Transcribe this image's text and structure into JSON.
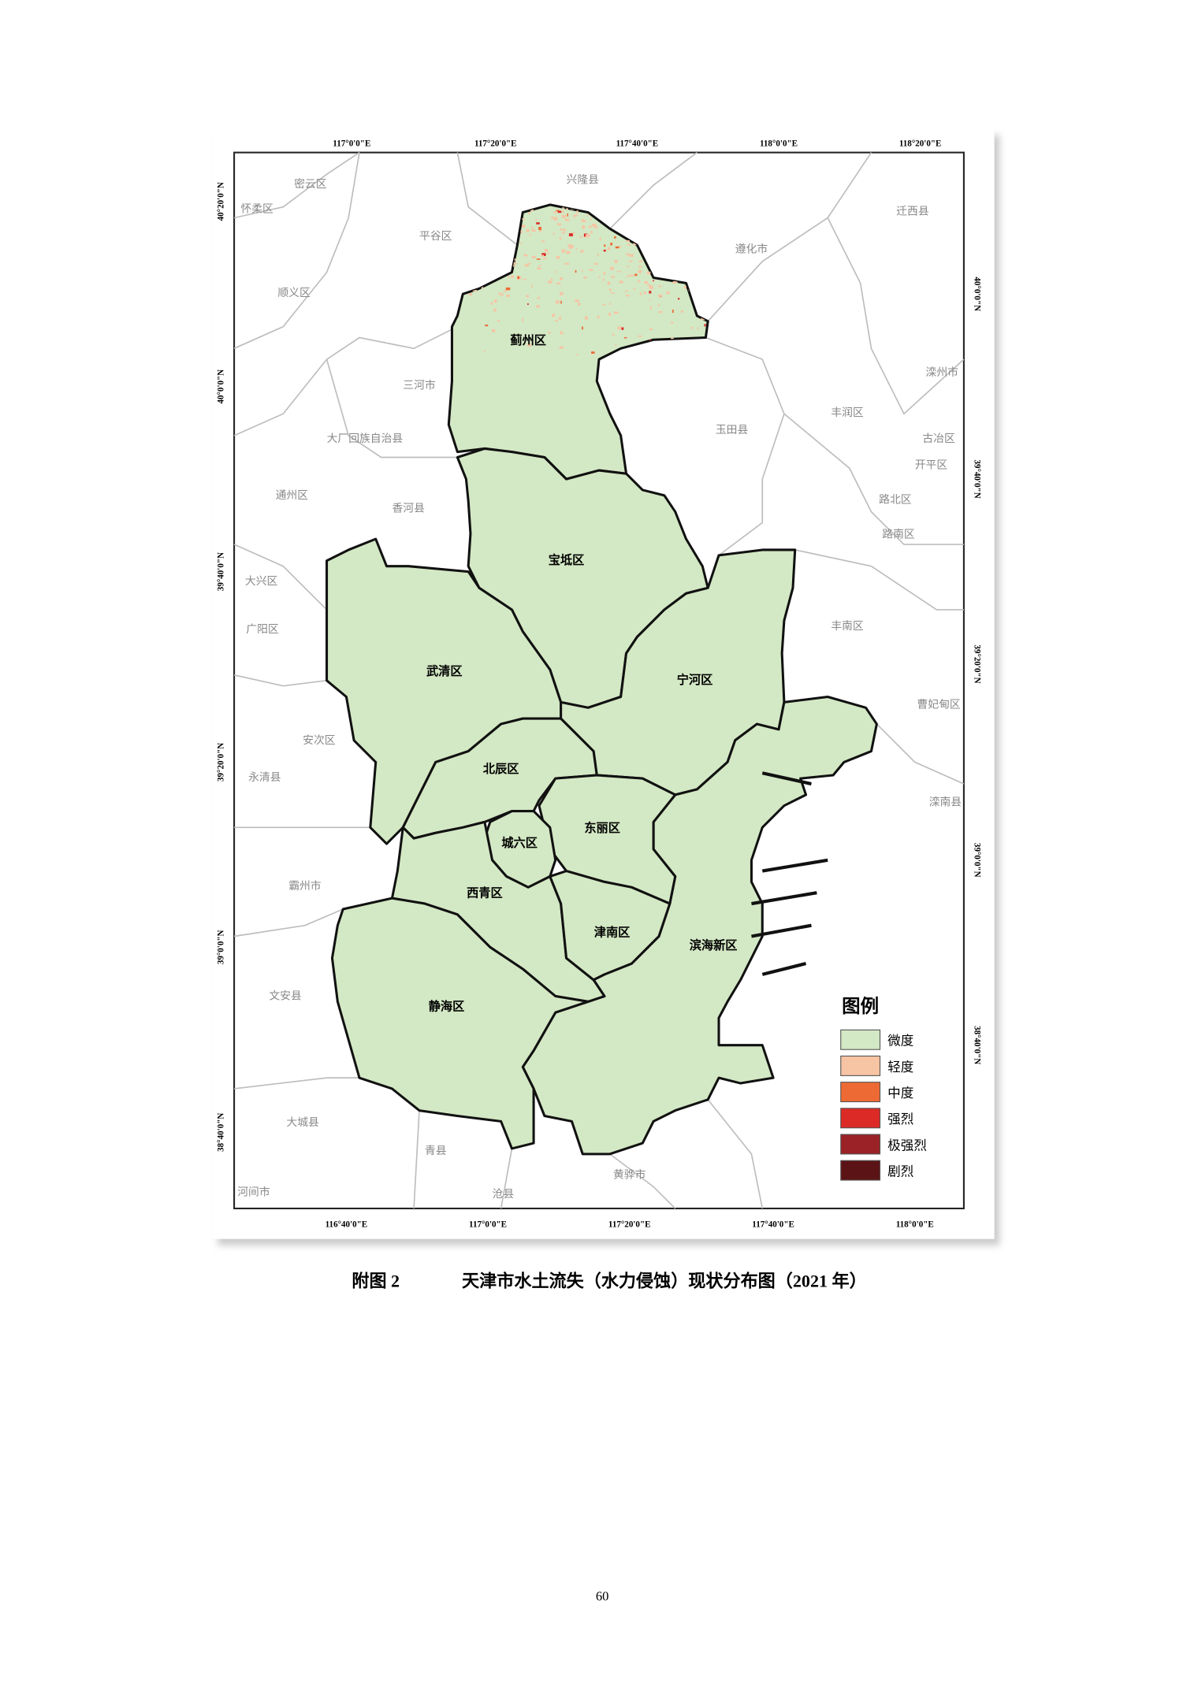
{
  "map": {
    "top_lon_labels": [
      "117°0'0\"E",
      "117°20'0\"E",
      "117°40'0\"E",
      "118°0'0\"E",
      "118°20'0\"E"
    ],
    "bottom_lon_labels": [
      "116°40'0\"E",
      "117°0'0\"E",
      "117°20'0\"E",
      "117°40'0\"E",
      "118°0'0\"E"
    ],
    "left_lat_labels": [
      "40°20'0\"N",
      "40°0'0\"N",
      "39°40'0\"N",
      "39°20'0\"N",
      "39°0'0\"N",
      "38°40'0\"N"
    ],
    "right_lat_labels": [
      "40°0'0\"N",
      "39°40'0\"N",
      "39°20'0\"N",
      "39°0'0\"N",
      "38°40'0\"N"
    ],
    "districts": [
      "蓟州区",
      "宝坻区",
      "武清区",
      "宁河区",
      "滨海新区",
      "北辰区",
      "东丽区",
      "城六区",
      "西青区",
      "津南区",
      "静海区"
    ],
    "neighbors": [
      "兴隆县",
      "密云区",
      "怀柔区",
      "平谷区",
      "遵化市",
      "迁西县",
      "顺义区",
      "三河市",
      "玉田县",
      "丰润区",
      "滦州市",
      "古冶区",
      "开平区",
      "大厂回族自治县",
      "路北区",
      "路南区",
      "通州区",
      "香河县",
      "大兴区",
      "广阳区",
      "丰南区",
      "曹妃甸区",
      "安次区",
      "永清县",
      "滦南县",
      "霸州市",
      "文安县",
      "大城县",
      "青县",
      "黄骅市",
      "河间市",
      "沧县"
    ],
    "legend": {
      "title": "图例",
      "items": [
        {
          "label": "微度",
          "color": "#d3e8c4"
        },
        {
          "label": "轻度",
          "color": "#f7c4a4"
        },
        {
          "label": "中度",
          "color": "#ee6a35"
        },
        {
          "label": "强烈",
          "color": "#dc2a26"
        },
        {
          "label": "极强烈",
          "color": "#9b2226"
        },
        {
          "label": "剧烈",
          "color": "#5c1316"
        }
      ]
    }
  },
  "caption": {
    "figure": "附图 2",
    "text": "天津市水土流失（水力侵蚀）现状分布图（2021 年）"
  },
  "page_number": "60"
}
